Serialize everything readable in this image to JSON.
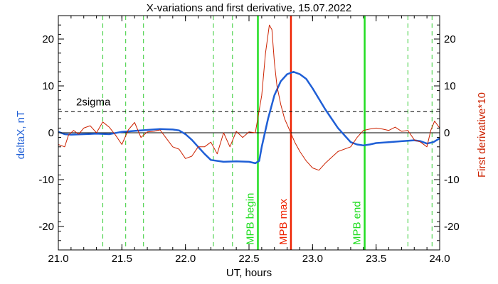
{
  "chart_data": {
    "type": "line",
    "title": "X-variations and first derivative, 15.07.2022",
    "xlabel": "UT, hours",
    "ylabel_left": "deltaX, nT",
    "ylabel_right": "First derivative*10",
    "xlim": [
      21.0,
      24.0
    ],
    "ylim": [
      -25,
      25
    ],
    "x_ticks": [
      "21.0",
      "21.5",
      "22.0",
      "22.5",
      "23.0",
      "23.5",
      "24.0"
    ],
    "y_ticks": [
      "-20",
      "-10",
      "0",
      "10",
      "20"
    ],
    "threshold": {
      "label": "2sigma",
      "value": 4.5
    },
    "zero_line": 0,
    "series": [
      {
        "name": "deltaX",
        "color": "#1f5fd6",
        "x": [
          21.0,
          21.05,
          21.1,
          21.2,
          21.3,
          21.4,
          21.5,
          21.6,
          21.7,
          21.8,
          21.9,
          21.95,
          22.0,
          22.05,
          22.1,
          22.15,
          22.2,
          22.3,
          22.4,
          22.5,
          22.55,
          22.58,
          22.6,
          22.65,
          22.7,
          22.75,
          22.8,
          22.85,
          22.9,
          22.95,
          23.0,
          23.1,
          23.2,
          23.3,
          23.35,
          23.4,
          23.45,
          23.5,
          23.6,
          23.7,
          23.8,
          23.85,
          23.9,
          23.95,
          24.0
        ],
        "y": [
          0.2,
          -0.3,
          -0.4,
          -0.3,
          -0.2,
          -0.3,
          0.2,
          0.4,
          0.6,
          0.8,
          0.7,
          0.5,
          -0.3,
          -1.5,
          -3.0,
          -4.5,
          -5.8,
          -6.2,
          -6.1,
          -6.2,
          -6.5,
          -6.0,
          -3.0,
          3.0,
          8.0,
          11.0,
          12.5,
          13.0,
          12.5,
          11.5,
          9.5,
          5.0,
          1.0,
          -2.0,
          -2.5,
          -2.7,
          -2.5,
          -2.2,
          -2.0,
          -1.8,
          -1.6,
          -1.8,
          -2.3,
          -2.0,
          -1.2
        ]
      },
      {
        "name": "First derivative*10",
        "color": "#cc2200",
        "x": [
          21.0,
          21.05,
          21.08,
          21.12,
          21.16,
          21.2,
          21.25,
          21.3,
          21.35,
          21.4,
          21.45,
          21.5,
          21.55,
          21.6,
          21.65,
          21.7,
          21.75,
          21.8,
          21.85,
          21.9,
          21.95,
          22.0,
          22.05,
          22.1,
          22.15,
          22.2,
          22.25,
          22.3,
          22.35,
          22.4,
          22.45,
          22.5,
          22.55,
          22.6,
          22.63,
          22.66,
          22.68,
          22.7,
          22.72,
          22.75,
          22.78,
          22.82,
          22.86,
          22.9,
          22.95,
          23.0,
          23.05,
          23.1,
          23.2,
          23.3,
          23.35,
          23.4,
          23.45,
          23.5,
          23.55,
          23.6,
          23.65,
          23.7,
          23.75,
          23.8,
          23.85,
          23.9,
          23.93,
          23.96,
          24.0
        ],
        "y": [
          -2.5,
          -3.0,
          -0.5,
          0.5,
          -0.3,
          1.0,
          1.5,
          0.0,
          2.3,
          1.2,
          -0.5,
          -2.5,
          0.6,
          2.2,
          -1.0,
          0.2,
          0.3,
          0.6,
          -1.2,
          -3.0,
          -3.5,
          -5.5,
          -5.0,
          -3.0,
          -3.0,
          -2.0,
          -4.5,
          0.0,
          -3.0,
          0.3,
          -1.0,
          0.2,
          0.0,
          8.0,
          17.0,
          23.0,
          22.0,
          15.0,
          10.0,
          6.0,
          3.0,
          0.5,
          -2.0,
          -4.0,
          -6.0,
          -7.5,
          -8.0,
          -6.5,
          -4.0,
          -3.0,
          -1.0,
          0.5,
          0.8,
          1.0,
          0.8,
          0.5,
          1.2,
          0.3,
          0.5,
          -1.5,
          -2.0,
          -3.0,
          0.5,
          2.5,
          1.0
        ]
      }
    ],
    "markers": [
      {
        "x": 21.35,
        "kind": "dashed",
        "color": "#33cc33"
      },
      {
        "x": 21.53,
        "kind": "dashed",
        "color": "#33cc33"
      },
      {
        "x": 21.67,
        "kind": "dashed",
        "color": "#33cc33"
      },
      {
        "x": 22.22,
        "kind": "dashed",
        "color": "#33cc33"
      },
      {
        "x": 22.37,
        "kind": "dashed",
        "color": "#33cc33"
      },
      {
        "x": 22.57,
        "kind": "solid",
        "color": "#22dd22",
        "label": "MPB begin"
      },
      {
        "x": 22.83,
        "kind": "solid",
        "color": "#ee2200",
        "label": "MPB max"
      },
      {
        "x": 23.41,
        "kind": "solid",
        "color": "#22dd22",
        "label": "MPB end"
      },
      {
        "x": 23.75,
        "kind": "dashed",
        "color": "#33cc33"
      },
      {
        "x": 23.94,
        "kind": "dashed",
        "color": "#33cc33"
      }
    ]
  }
}
